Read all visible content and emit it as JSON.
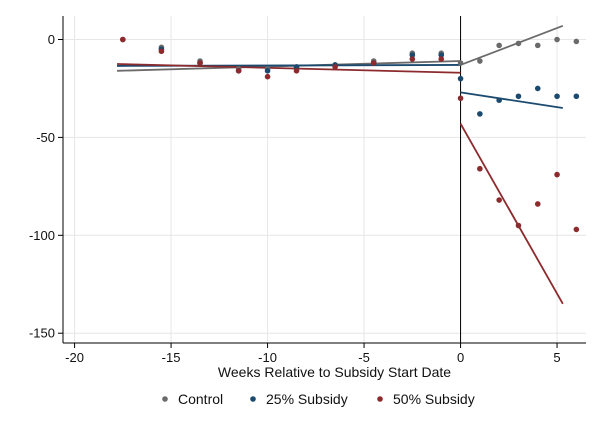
{
  "chart_data": {
    "type": "scatter",
    "title": "",
    "xlabel": "Weeks Relative to Subsidy Start Date",
    "ylabel": "",
    "xlim": [
      -20.6,
      6.5
    ],
    "ylim": [
      -155,
      12
    ],
    "xticks": [
      -20,
      -15,
      -10,
      -5,
      0,
      5
    ],
    "yticks": [
      0,
      -50,
      -100,
      -150
    ],
    "xtick_labels": [
      "-20",
      "-15",
      "-10",
      "-5",
      "0",
      "5"
    ],
    "ytick_labels": [
      "0",
      "-50",
      "-100",
      "-150"
    ],
    "grid": true,
    "vertical_line_x": 0,
    "legend_position": "bottom",
    "series": [
      {
        "name": "Control",
        "color": "#6b6b6b",
        "points": [
          {
            "x": -17.5,
            "y": 0
          },
          {
            "x": -15.5,
            "y": -4
          },
          {
            "x": -13.5,
            "y": -11
          },
          {
            "x": -11.5,
            "y": -15
          },
          {
            "x": -10,
            "y": -15
          },
          {
            "x": -8.5,
            "y": -14
          },
          {
            "x": -6.5,
            "y": -13
          },
          {
            "x": -4.5,
            "y": -11
          },
          {
            "x": -2.5,
            "y": -7
          },
          {
            "x": -1,
            "y": -7
          },
          {
            "x": 0,
            "y": -12
          },
          {
            "x": 1,
            "y": -11
          },
          {
            "x": 2,
            "y": -3
          },
          {
            "x": 3,
            "y": -2
          },
          {
            "x": 4,
            "y": -3
          },
          {
            "x": 5,
            "y": 0
          },
          {
            "x": 6,
            "y": -1
          }
        ],
        "fit_pre": [
          {
            "x": -17.8,
            "y": -16
          },
          {
            "x": 0,
            "y": -11
          }
        ],
        "fit_post": [
          {
            "x": 0,
            "y": -13
          },
          {
            "x": 5.3,
            "y": 7
          }
        ]
      },
      {
        "name": "25% Subsidy",
        "color": "#1b4a6e",
        "points": [
          {
            "x": -15.5,
            "y": -5
          },
          {
            "x": -13.5,
            "y": -12
          },
          {
            "x": -11.5,
            "y": -16
          },
          {
            "x": -10,
            "y": -16
          },
          {
            "x": -8.5,
            "y": -14
          },
          {
            "x": -6.5,
            "y": -13
          },
          {
            "x": -4.5,
            "y": -12
          },
          {
            "x": -2.5,
            "y": -8
          },
          {
            "x": -1,
            "y": -8
          },
          {
            "x": 0,
            "y": -20
          },
          {
            "x": 1,
            "y": -38
          },
          {
            "x": 2,
            "y": -31
          },
          {
            "x": 3,
            "y": -29
          },
          {
            "x": 4,
            "y": -25
          },
          {
            "x": 5,
            "y": -29
          },
          {
            "x": 6,
            "y": -29
          }
        ],
        "fit_pre": [
          {
            "x": -17.8,
            "y": -13.5
          },
          {
            "x": 0,
            "y": -13
          }
        ],
        "fit_post": [
          {
            "x": 0,
            "y": -27
          },
          {
            "x": 5.3,
            "y": -35
          }
        ]
      },
      {
        "name": "50% Subsidy",
        "color": "#8c2a2e",
        "points": [
          {
            "x": -17.5,
            "y": 0
          },
          {
            "x": -15.5,
            "y": -6
          },
          {
            "x": -13.5,
            "y": -12
          },
          {
            "x": -11.5,
            "y": -16
          },
          {
            "x": -10,
            "y": -19
          },
          {
            "x": -8.5,
            "y": -16
          },
          {
            "x": -6.5,
            "y": -14
          },
          {
            "x": -4.5,
            "y": -12
          },
          {
            "x": -2.5,
            "y": -10
          },
          {
            "x": -1,
            "y": -10
          },
          {
            "x": 0,
            "y": -30
          },
          {
            "x": 1,
            "y": -66
          },
          {
            "x": 2,
            "y": -82
          },
          {
            "x": 3,
            "y": -95
          },
          {
            "x": 4,
            "y": -84
          },
          {
            "x": 5,
            "y": -69
          },
          {
            "x": 6,
            "y": -97
          }
        ],
        "fit_pre": [
          {
            "x": -17.8,
            "y": -12.5
          },
          {
            "x": 0,
            "y": -17
          }
        ],
        "fit_post": [
          {
            "x": 0,
            "y": -43
          },
          {
            "x": 5.3,
            "y": -135
          }
        ]
      }
    ]
  }
}
